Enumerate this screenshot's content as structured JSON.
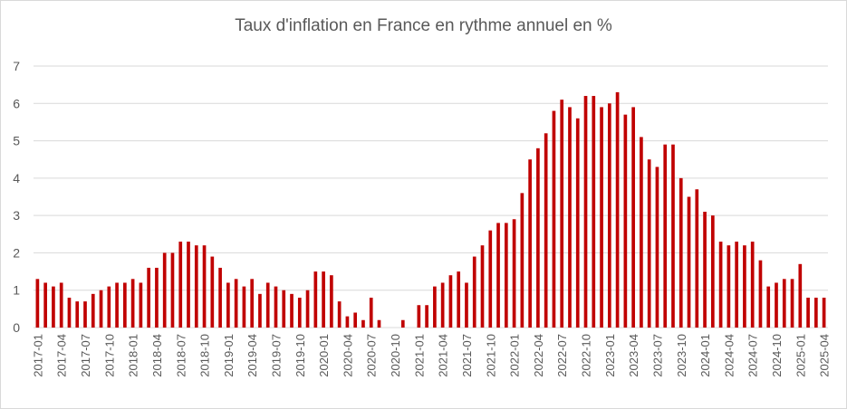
{
  "chart_data": {
    "type": "bar",
    "title": "Taux d'inflation en France en rythme annuel en %",
    "xlabel": "",
    "ylabel": "",
    "ylim": [
      0,
      7
    ],
    "yticks": [
      0,
      1,
      2,
      3,
      4,
      5,
      6,
      7
    ],
    "grid": true,
    "legend": "none",
    "bar_color": "#c00000",
    "grid_color": "#d9d9d9",
    "categories": [
      "2017-01",
      "2017-02",
      "2017-03",
      "2017-04",
      "2017-05",
      "2017-06",
      "2017-07",
      "2017-08",
      "2017-09",
      "2017-10",
      "2017-11",
      "2017-12",
      "2018-01",
      "2018-02",
      "2018-03",
      "2018-04",
      "2018-05",
      "2018-06",
      "2018-07",
      "2018-08",
      "2018-09",
      "2018-10",
      "2018-11",
      "2018-12",
      "2019-01",
      "2019-02",
      "2019-03",
      "2019-04",
      "2019-05",
      "2019-06",
      "2019-07",
      "2019-08",
      "2019-09",
      "2019-10",
      "2019-11",
      "2019-12",
      "2020-01",
      "2020-02",
      "2020-03",
      "2020-04",
      "2020-05",
      "2020-06",
      "2020-07",
      "2020-08",
      "2020-09",
      "2020-10",
      "2020-11",
      "2020-12",
      "2021-01",
      "2021-02",
      "2021-03",
      "2021-04",
      "2021-05",
      "2021-06",
      "2021-07",
      "2021-08",
      "2021-09",
      "2021-10",
      "2021-11",
      "2021-12",
      "2022-01",
      "2022-02",
      "2022-03",
      "2022-04",
      "2022-05",
      "2022-06",
      "2022-07",
      "2022-08",
      "2022-09",
      "2022-10",
      "2022-11",
      "2022-12",
      "2023-01",
      "2023-02",
      "2023-03",
      "2023-04",
      "2023-05",
      "2023-06",
      "2023-07",
      "2023-08",
      "2023-09",
      "2023-10",
      "2023-11",
      "2023-12",
      "2024-01",
      "2024-02",
      "2024-03",
      "2024-04",
      "2024-05",
      "2024-06",
      "2024-07",
      "2024-08",
      "2024-09",
      "2024-10",
      "2024-11",
      "2024-12",
      "2025-01",
      "2025-02",
      "2025-03",
      "2025-04"
    ],
    "tick_labels": [
      "2017-01",
      "2017-04",
      "2017-07",
      "2017-10",
      "2018-01",
      "2018-04",
      "2018-07",
      "2018-10",
      "2019-01",
      "2019-04",
      "2019-07",
      "2019-10",
      "2020-01",
      "2020-04",
      "2020-07",
      "2020-10",
      "2021-01",
      "2021-04",
      "2021-07",
      "2021-10",
      "2022-01",
      "2022-04",
      "2022-07",
      "2022-10",
      "2023-01",
      "2023-04",
      "2023-07",
      "2023-10",
      "2024-01",
      "2024-04",
      "2024-07",
      "2024-10",
      "2025-01",
      "2025-04"
    ],
    "values": [
      1.3,
      1.2,
      1.1,
      1.2,
      0.8,
      0.7,
      0.7,
      0.9,
      1.0,
      1.1,
      1.2,
      1.2,
      1.3,
      1.2,
      1.6,
      1.6,
      2.0,
      2.0,
      2.3,
      2.3,
      2.2,
      2.2,
      1.9,
      1.6,
      1.2,
      1.3,
      1.1,
      1.3,
      0.9,
      1.2,
      1.1,
      1.0,
      0.9,
      0.8,
      1.0,
      1.5,
      1.5,
      1.4,
      0.7,
      0.3,
      0.4,
      0.2,
      0.8,
      0.2,
      0.0,
      0.0,
      0.2,
      0.0,
      0.6,
      0.6,
      1.1,
      1.2,
      1.4,
      1.5,
      1.2,
      1.9,
      2.2,
      2.6,
      2.8,
      2.8,
      2.9,
      3.6,
      4.5,
      4.8,
      5.2,
      5.8,
      6.1,
      5.9,
      5.6,
      6.2,
      6.2,
      5.9,
      6.0,
      6.3,
      5.7,
      5.9,
      5.1,
      4.5,
      4.3,
      4.9,
      4.9,
      4.0,
      3.5,
      3.7,
      3.1,
      3.0,
      2.3,
      2.2,
      2.3,
      2.2,
      2.3,
      1.8,
      1.1,
      1.2,
      1.3,
      1.3,
      1.7,
      0.8,
      0.8,
      0.8
    ]
  }
}
